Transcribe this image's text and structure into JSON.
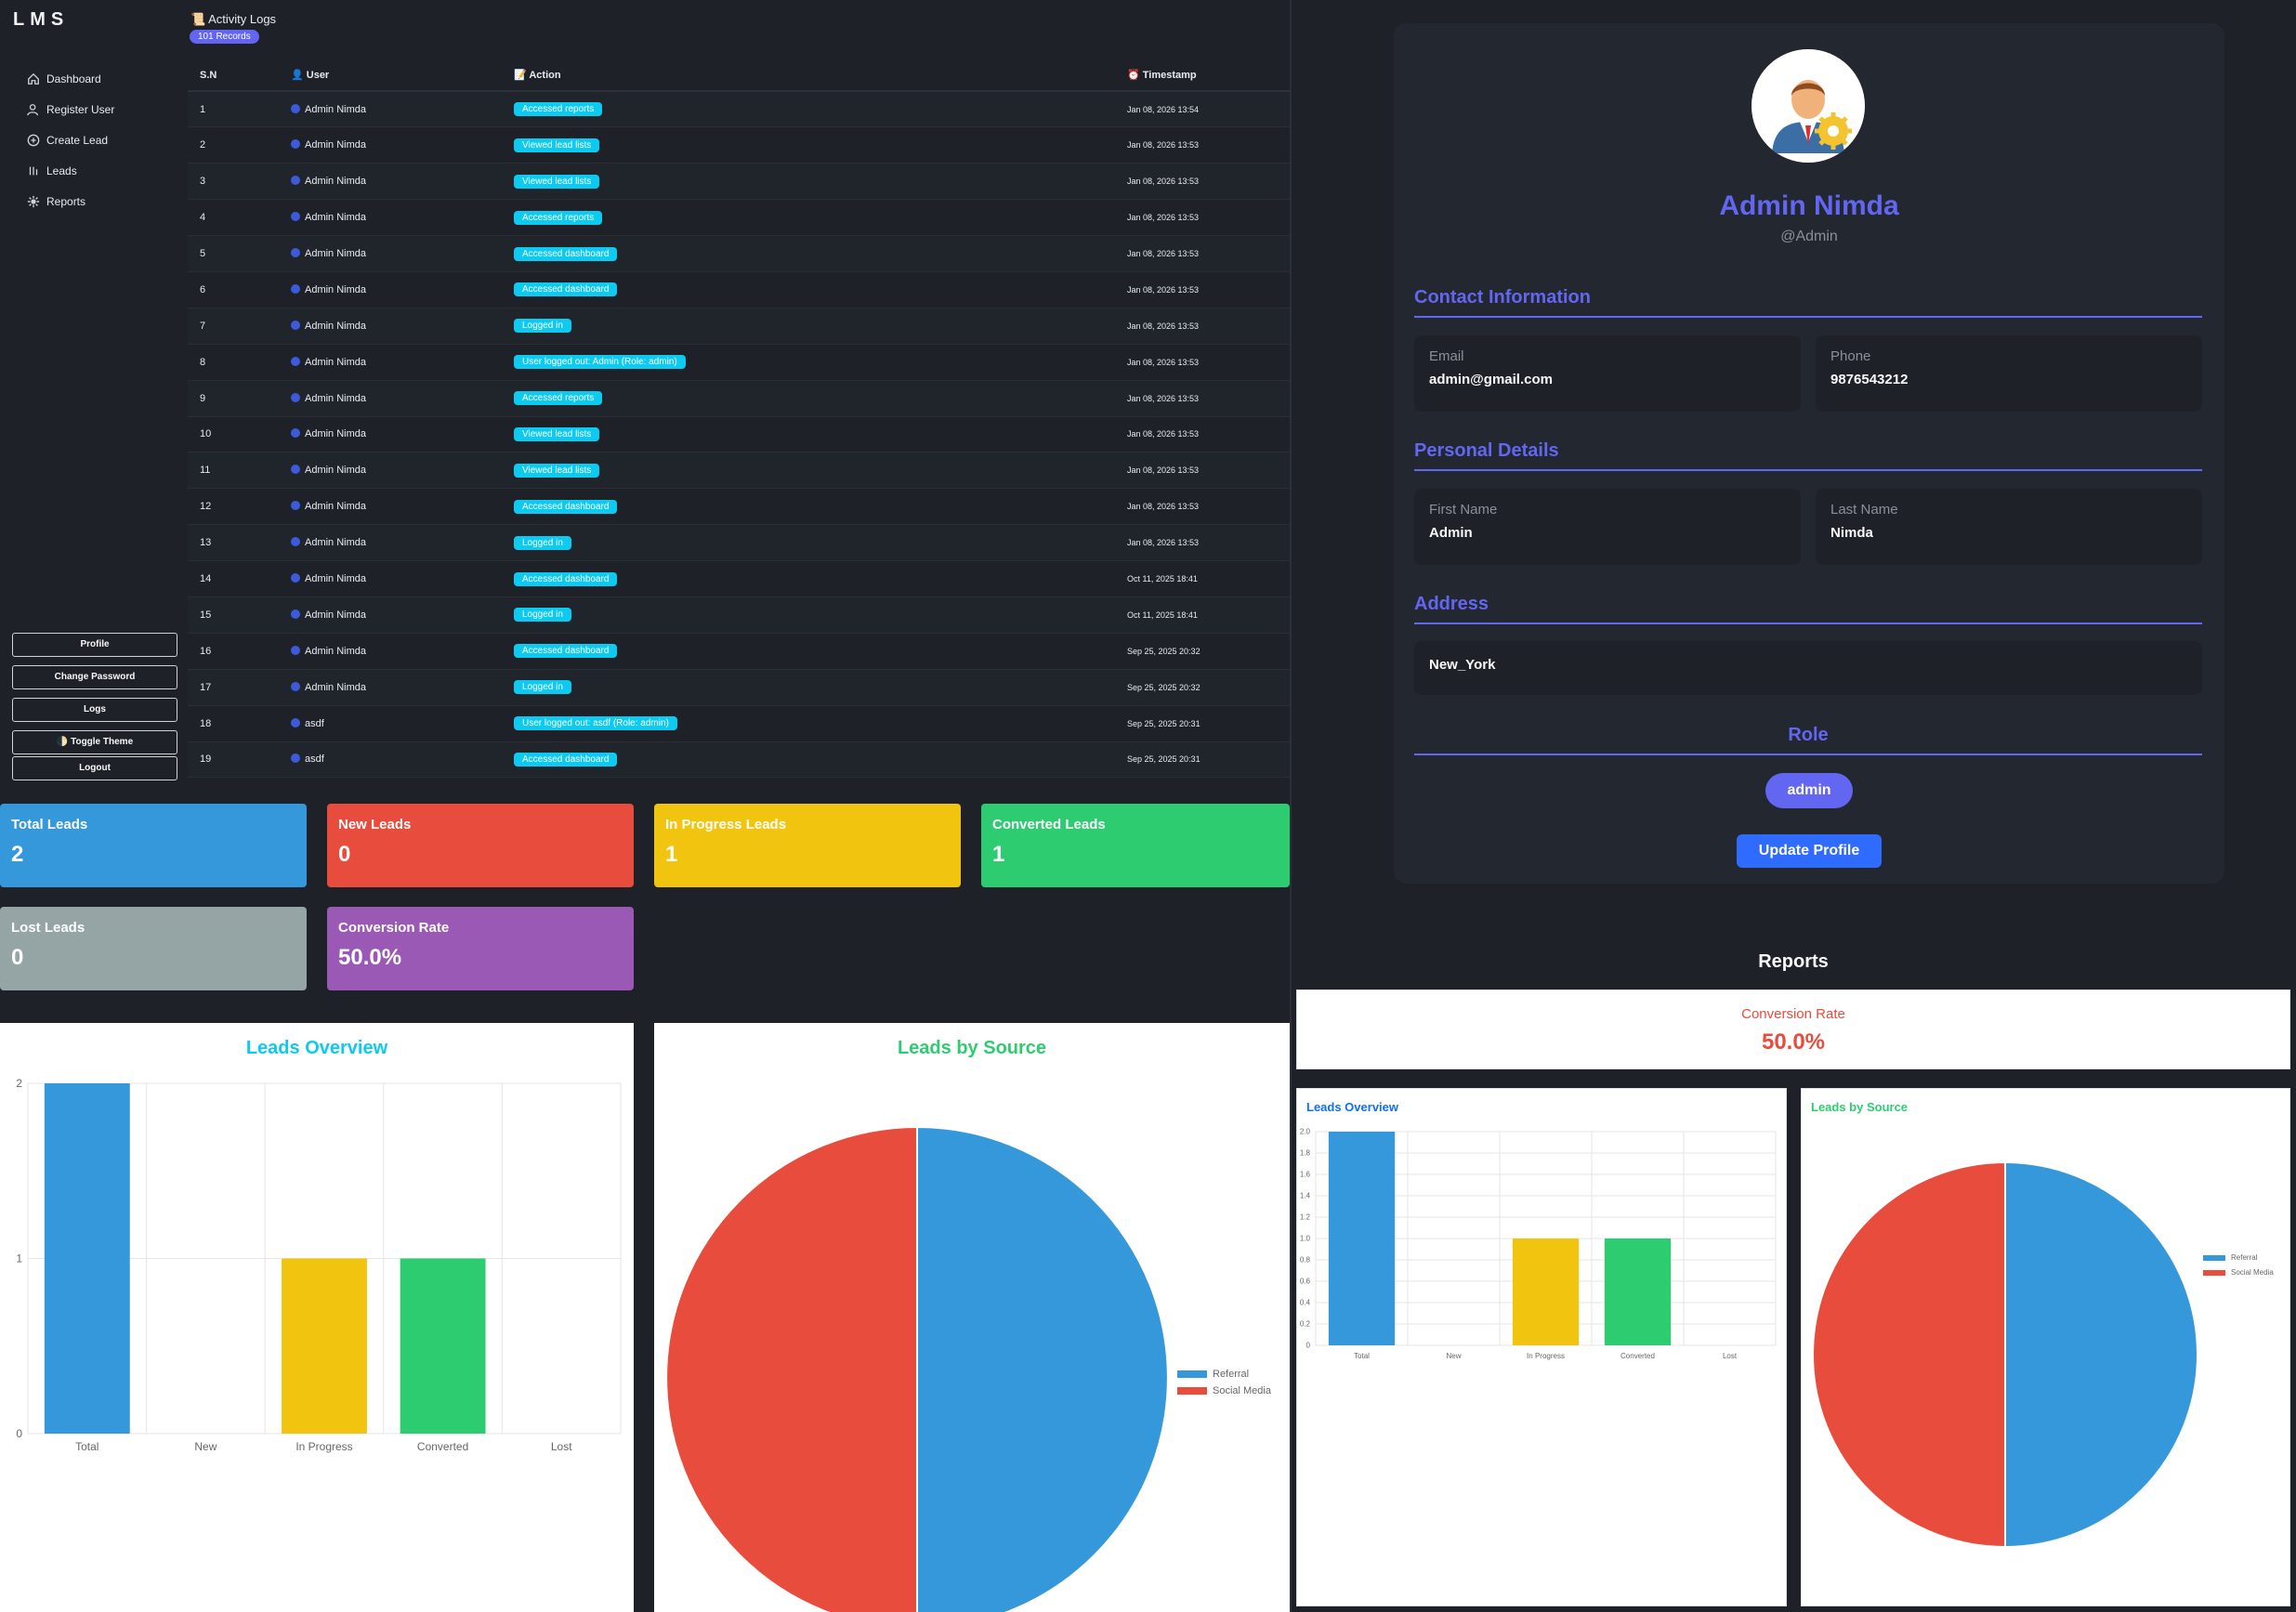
{
  "brand": "LMS",
  "sidebar": {
    "items": [
      {
        "label": "Dashboard",
        "icon": "home-icon"
      },
      {
        "label": "Register User",
        "icon": "user-plus-icon"
      },
      {
        "label": "Create Lead",
        "icon": "plus-circle-icon"
      },
      {
        "label": "Leads",
        "icon": "list-icon"
      },
      {
        "label": "Reports",
        "icon": "gear-icon"
      }
    ],
    "buttons": {
      "profile": "Profile",
      "change_password": "Change Password",
      "logs": "Logs",
      "toggle_theme": "🌓 Toggle Theme",
      "logout": "Logout"
    }
  },
  "logs": {
    "title": "📜 Activity Logs",
    "records": "101 Records",
    "headers": {
      "sn": "S.N",
      "user": "👤 User",
      "action": "📝 Action",
      "timestamp": "⏰ Timestamp"
    },
    "rows": [
      {
        "sn": "1",
        "user": "Admin Nimda",
        "action": "Accessed reports",
        "ts": "Jan 08, 2026 13:54"
      },
      {
        "sn": "2",
        "user": "Admin Nimda",
        "action": "Viewed lead lists",
        "ts": "Jan 08, 2026 13:53"
      },
      {
        "sn": "3",
        "user": "Admin Nimda",
        "action": "Viewed lead lists",
        "ts": "Jan 08, 2026 13:53"
      },
      {
        "sn": "4",
        "user": "Admin Nimda",
        "action": "Accessed reports",
        "ts": "Jan 08, 2026 13:53"
      },
      {
        "sn": "5",
        "user": "Admin Nimda",
        "action": "Accessed dashboard",
        "ts": "Jan 08, 2026 13:53"
      },
      {
        "sn": "6",
        "user": "Admin Nimda",
        "action": "Accessed dashboard",
        "ts": "Jan 08, 2026 13:53"
      },
      {
        "sn": "7",
        "user": "Admin Nimda",
        "action": "Logged in",
        "ts": "Jan 08, 2026 13:53"
      },
      {
        "sn": "8",
        "user": "Admin Nimda",
        "action": "User logged out: Admin (Role: admin)",
        "ts": "Jan 08, 2026 13:53"
      },
      {
        "sn": "9",
        "user": "Admin Nimda",
        "action": "Accessed reports",
        "ts": "Jan 08, 2026 13:53"
      },
      {
        "sn": "10",
        "user": "Admin Nimda",
        "action": "Viewed lead lists",
        "ts": "Jan 08, 2026 13:53"
      },
      {
        "sn": "11",
        "user": "Admin Nimda",
        "action": "Viewed lead lists",
        "ts": "Jan 08, 2026 13:53"
      },
      {
        "sn": "12",
        "user": "Admin Nimda",
        "action": "Accessed dashboard",
        "ts": "Jan 08, 2026 13:53"
      },
      {
        "sn": "13",
        "user": "Admin Nimda",
        "action": "Logged in",
        "ts": "Jan 08, 2026 13:53"
      },
      {
        "sn": "14",
        "user": "Admin Nimda",
        "action": "Accessed dashboard",
        "ts": "Oct 11, 2025 18:41"
      },
      {
        "sn": "15",
        "user": "Admin Nimda",
        "action": "Logged in",
        "ts": "Oct 11, 2025 18:41"
      },
      {
        "sn": "16",
        "user": "Admin Nimda",
        "action": "Accessed dashboard",
        "ts": "Sep 25, 2025 20:32"
      },
      {
        "sn": "17",
        "user": "Admin Nimda",
        "action": "Logged in",
        "ts": "Sep 25, 2025 20:32"
      },
      {
        "sn": "18",
        "user": "asdf",
        "action": "User logged out: asdf (Role: admin)",
        "ts": "Sep 25, 2025 20:31"
      },
      {
        "sn": "19",
        "user": "asdf",
        "action": "Accessed dashboard",
        "ts": "Sep 25, 2025 20:31"
      }
    ]
  },
  "stats": [
    {
      "title": "Total Leads",
      "value": "2",
      "color": "#3498db"
    },
    {
      "title": "New Leads",
      "value": "0",
      "color": "#e74c3c"
    },
    {
      "title": "In Progress Leads",
      "value": "1",
      "color": "#f1c40f"
    },
    {
      "title": "Converted Leads",
      "value": "1",
      "color": "#2ecc71"
    },
    {
      "title": "Lost Leads",
      "value": "0",
      "color": "#95a5a6"
    },
    {
      "title": "Conversion Rate",
      "value": "50.0%",
      "color": "#9b59b6"
    }
  ],
  "profile": {
    "name": "Admin Nimda",
    "handle": "@Admin",
    "sections": {
      "contact": "Contact Information",
      "personal": "Personal Details",
      "address": "Address",
      "role": "Role"
    },
    "email_label": "Email",
    "email": "admin@gmail.com",
    "phone_label": "Phone",
    "phone": "9876543212",
    "first_name_label": "First Name",
    "first_name": "Admin",
    "last_name_label": "Last Name",
    "last_name": "Nimda",
    "address": "New_York",
    "role": "admin",
    "update_button": "Update Profile"
  },
  "reports": {
    "title": "Reports",
    "conversion_label": "Conversion Rate",
    "conversion_value": "50.0%"
  },
  "chart_data": [
    {
      "type": "bar",
      "title": "Leads Overview",
      "categories": [
        "Total",
        "New",
        "In Progress",
        "Converted",
        "Lost"
      ],
      "values": [
        2,
        0,
        1,
        1,
        0
      ],
      "colors": [
        "#3498db",
        "#e74c3c",
        "#f1c40f",
        "#2ecc71",
        "#95a5a6"
      ],
      "ylim": [
        0,
        2
      ],
      "yticks": [
        "0",
        "1",
        "2"
      ],
      "grid": true
    },
    {
      "type": "pie",
      "title": "Leads by Source",
      "labels": [
        "Referral",
        "Social Media"
      ],
      "values": [
        1,
        1
      ],
      "colors": [
        "#3498db",
        "#e74c3c"
      ],
      "legend": "right"
    },
    {
      "type": "bar",
      "title": "Leads Overview",
      "categories": [
        "Total",
        "New",
        "In Progress",
        "Converted",
        "Lost"
      ],
      "values": [
        2,
        0,
        1,
        1,
        0
      ],
      "colors": [
        "#3498db",
        "#e74c3c",
        "#f1c40f",
        "#2ecc71",
        "#95a5a6"
      ],
      "ylim": [
        0,
        2
      ],
      "yticks": [
        "0",
        "0.2",
        "0.4",
        "0.6",
        "0.8",
        "1.0",
        "1.2",
        "1.4",
        "1.6",
        "1.8",
        "2.0"
      ],
      "grid": true
    },
    {
      "type": "pie",
      "title": "Leads by Source",
      "labels": [
        "Referral",
        "Social Media"
      ],
      "values": [
        1,
        1
      ],
      "colors": [
        "#3498db",
        "#e74c3c"
      ],
      "legend": "right"
    }
  ]
}
